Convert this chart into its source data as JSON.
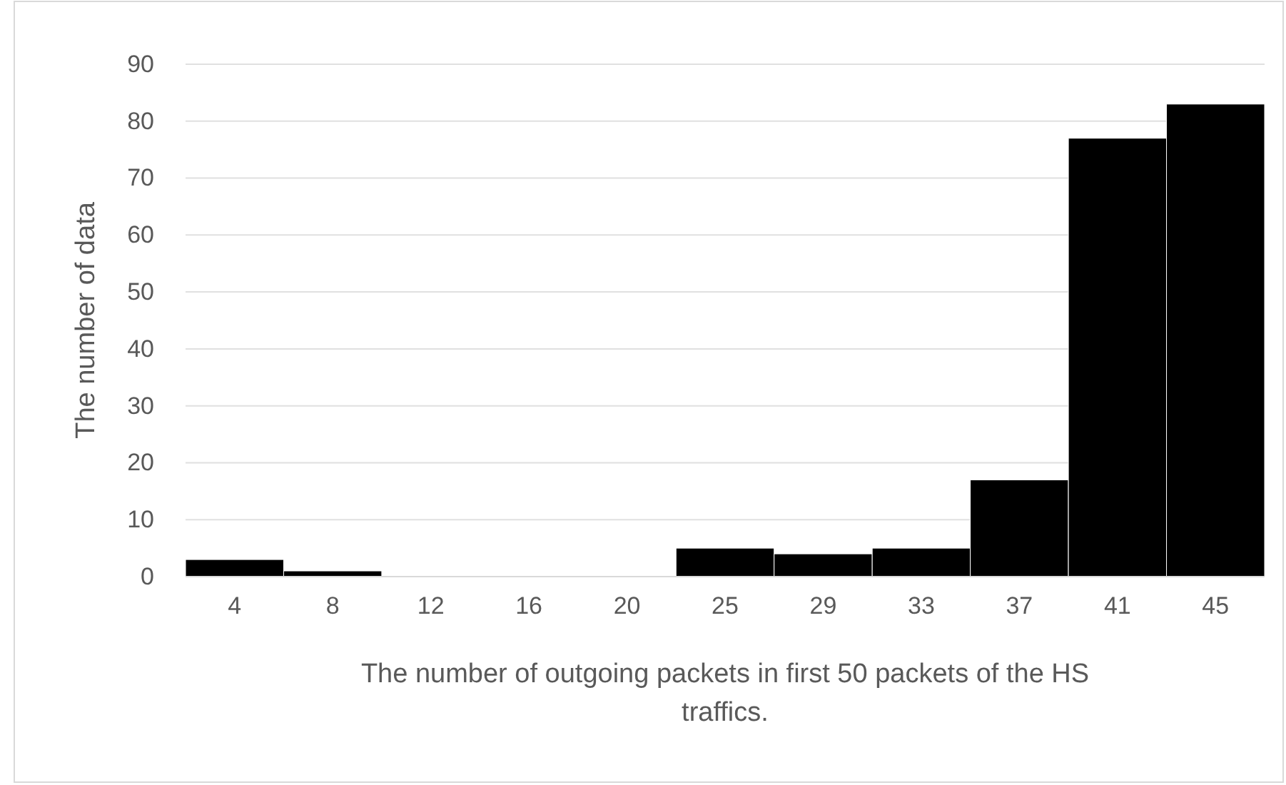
{
  "chart_data": {
    "type": "bar",
    "xlabel": "The number of outgoing packets in first 50 packets of the HS traffics.",
    "ylabel": "The number of data",
    "categories": [
      "4",
      "8",
      "12",
      "16",
      "20",
      "25",
      "29",
      "33",
      "37",
      "41",
      "45"
    ],
    "values": [
      3,
      1,
      0,
      0,
      0,
      5,
      4,
      5,
      17,
      77,
      83
    ],
    "color": "#000000",
    "ylim": [
      0,
      90
    ],
    "yticks": [
      0,
      10,
      20,
      30,
      40,
      50,
      60,
      70,
      80,
      90
    ],
    "grid": "y"
  }
}
